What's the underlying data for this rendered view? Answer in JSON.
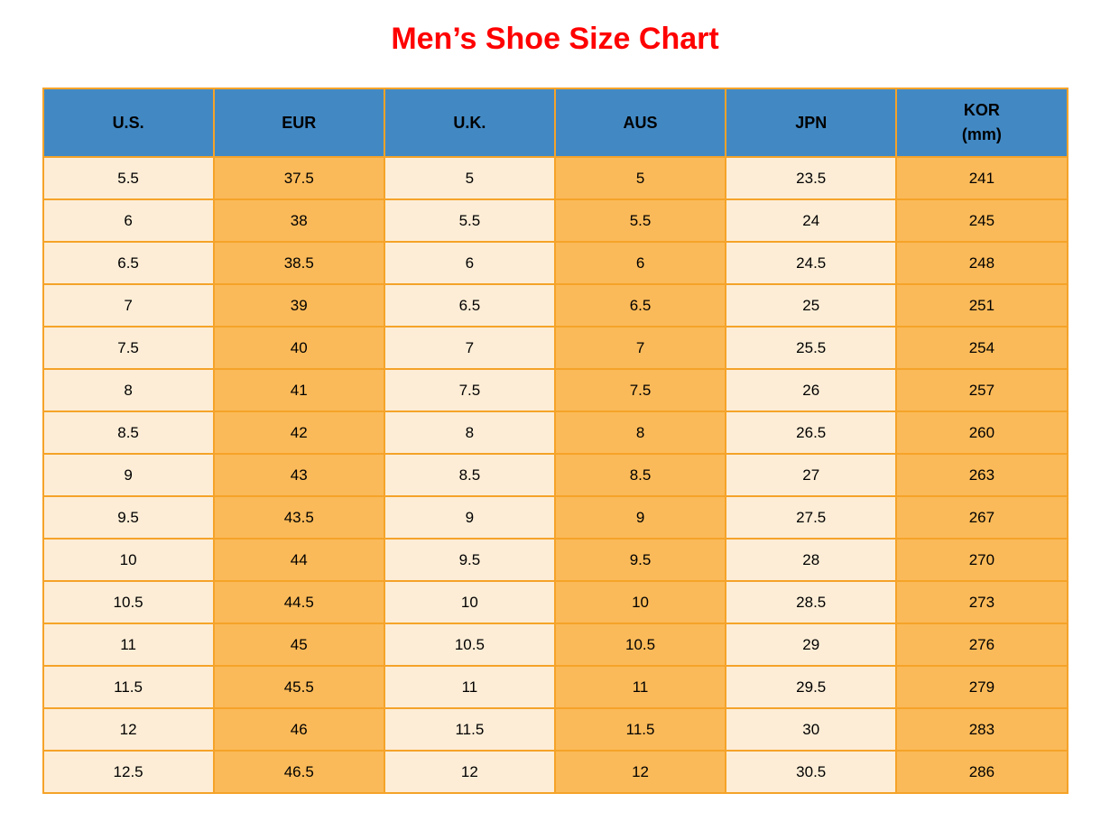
{
  "title": "Men’s Shoe Size Chart",
  "chart_data": {
    "type": "table",
    "title": "Men’s Shoe Size Chart",
    "columns": [
      "U.S.",
      "EUR",
      "U.K.",
      "AUS",
      "JPN",
      "KOR (mm)"
    ],
    "header_lines": [
      [
        "U.S."
      ],
      [
        "EUR"
      ],
      [
        "U.K."
      ],
      [
        "AUS"
      ],
      [
        "JPN"
      ],
      [
        "KOR",
        "(mm)"
      ]
    ],
    "rows": [
      [
        "5.5",
        "37.5",
        "5",
        "5",
        "23.5",
        "241"
      ],
      [
        "6",
        "38",
        "5.5",
        "5.5",
        "24",
        "245"
      ],
      [
        "6.5",
        "38.5",
        "6",
        "6",
        "24.5",
        "248"
      ],
      [
        "7",
        "39",
        "6.5",
        "6.5",
        "25",
        "251"
      ],
      [
        "7.5",
        "40",
        "7",
        "7",
        "25.5",
        "254"
      ],
      [
        "8",
        "41",
        "7.5",
        "7.5",
        "26",
        "257"
      ],
      [
        "8.5",
        "42",
        "8",
        "8",
        "26.5",
        "260"
      ],
      [
        "9",
        "43",
        "8.5",
        "8.5",
        "27",
        "263"
      ],
      [
        "9.5",
        "43.5",
        "9",
        "9",
        "27.5",
        "267"
      ],
      [
        "10",
        "44",
        "9.5",
        "9.5",
        "28",
        "270"
      ],
      [
        "10.5",
        "44.5",
        "10",
        "10",
        "28.5",
        "273"
      ],
      [
        "11",
        "45",
        "10.5",
        "10.5",
        "29",
        "276"
      ],
      [
        "11.5",
        "45.5",
        "11",
        "11",
        "29.5",
        "279"
      ],
      [
        "12",
        "46",
        "11.5",
        "11.5",
        "30",
        "283"
      ],
      [
        "12.5",
        "46.5",
        "12",
        "12",
        "30.5",
        "286"
      ]
    ],
    "column_fill_pattern": [
      "cream",
      "orange",
      "cream",
      "orange",
      "cream",
      "orange"
    ],
    "legend_position": "none",
    "grid": true
  },
  "colors": {
    "title_red": "#FF0000",
    "header_blue": "#4289C4",
    "cell_orange": "#FBBA59",
    "cell_cream": "#FDEDD6",
    "border_orange": "#F5A329",
    "text_black": "#000000"
  }
}
